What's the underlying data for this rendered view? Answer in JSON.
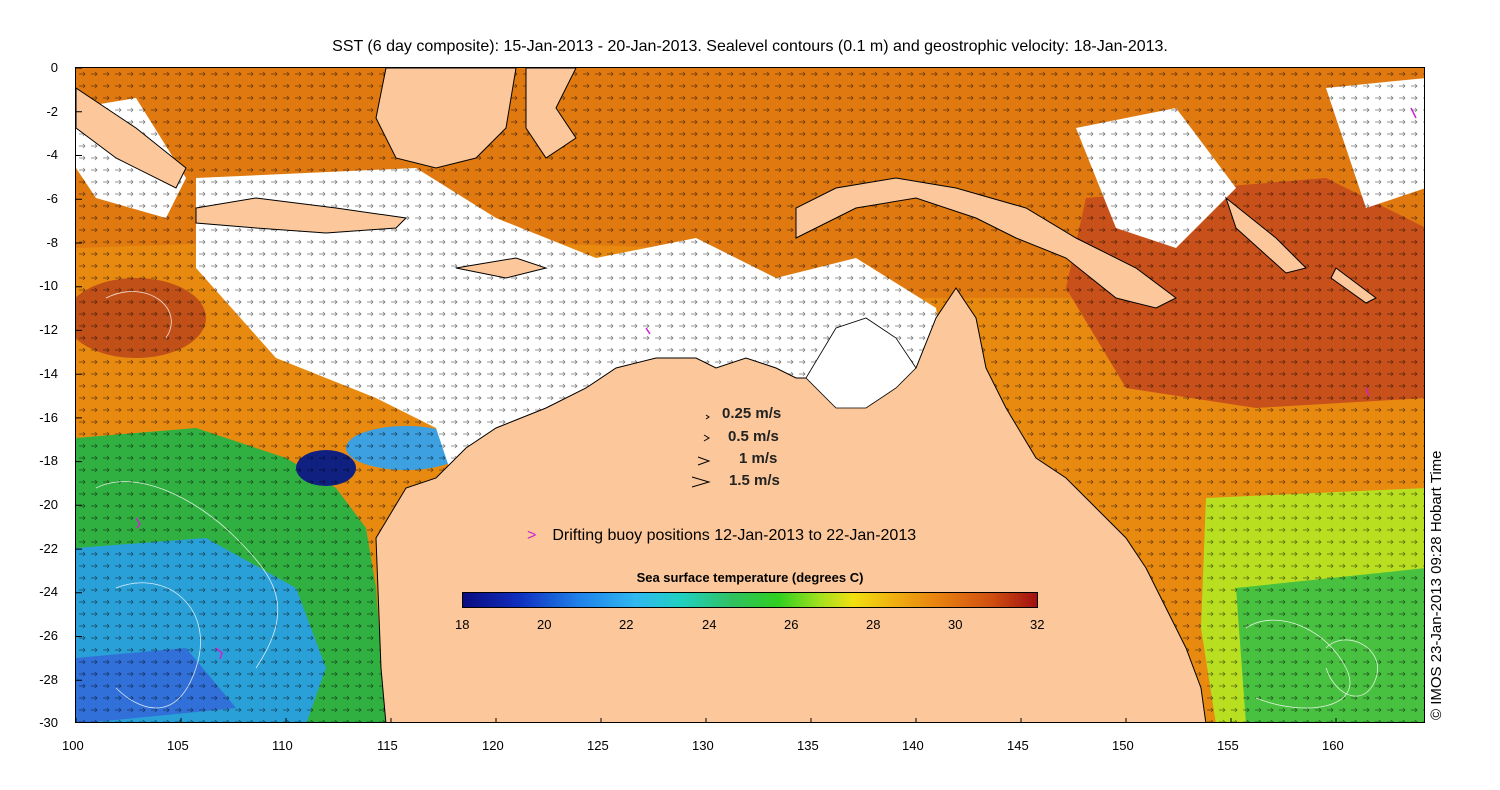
{
  "title": "SST (6 day composite): 15-Jan-2013 - 20-Jan-2013. Sealevel contours (0.1 m) and geostrophic velocity: 18-Jan-2013.",
  "credit": "© IMOS 23-Jan-2013 09:28 Hobart Time",
  "axes": {
    "x_ticks": [
      "100",
      "105",
      "110",
      "115",
      "120",
      "125",
      "130",
      "135",
      "140",
      "145",
      "150",
      "155",
      "160"
    ],
    "y_ticks": [
      "0",
      "-2",
      "-4",
      "-6",
      "-8",
      "-10",
      "-12",
      "-14",
      "-16",
      "-18",
      "-20",
      "-22",
      "-24",
      "-26",
      "-28",
      "-30"
    ]
  },
  "velocity_legend": [
    {
      "label": "0.25 m/s"
    },
    {
      "label": "0.5 m/s"
    },
    {
      "label": "1 m/s"
    },
    {
      "label": "1.5 m/s"
    }
  ],
  "buoy_legend": {
    "marker": ">",
    "label": "Drifting buoy positions 12-Jan-2013 to 22-Jan-2013"
  },
  "colorbar": {
    "title": "Sea surface temperature (degrees C)",
    "ticks": [
      "18",
      "20",
      "22",
      "24",
      "26",
      "28",
      "30",
      "32"
    ]
  },
  "colors": {
    "land": "#fcc89b",
    "warm": "#c8501a",
    "hot": "#a01810",
    "mid": "#e89a10",
    "cool": "#3cc040",
    "cold": "#30a0e0",
    "coldest": "#102080",
    "buoy": "#d020d0"
  }
}
